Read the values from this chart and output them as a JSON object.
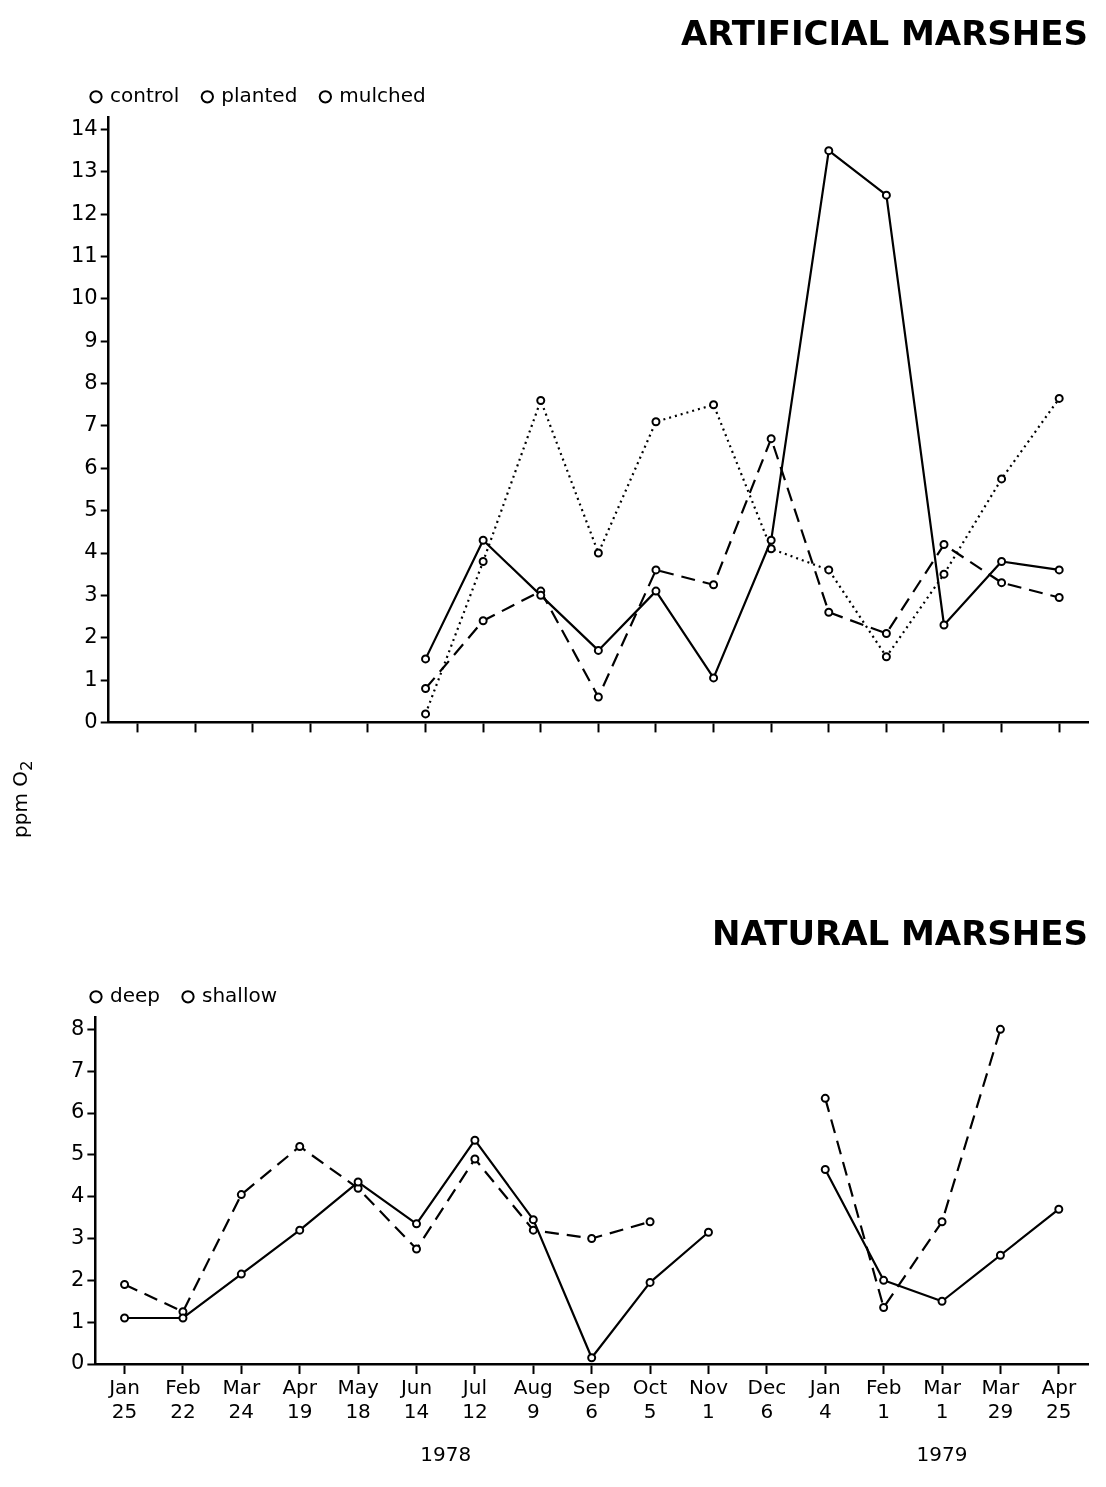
{
  "chart_data": [
    {
      "type": "line",
      "title": "ARTIFICIAL MARSHES",
      "ylabel": "ppm O$_{2}$",
      "categories": [
        null,
        null,
        null,
        null,
        null,
        null,
        null,
        null,
        null,
        null,
        null,
        null,
        null,
        null,
        null,
        null,
        null
      ],
      "series": [
        {
          "name": "control",
          "color": "#000000",
          "line_style": "solid",
          "values": [
            null,
            null,
            null,
            null,
            null,
            1.5,
            4.3,
            3.0,
            1.7,
            3.1,
            1.05,
            4.3,
            13.5,
            12.45,
            2.3,
            3.8,
            3.6
          ]
        },
        {
          "name": "planted",
          "color": "#000000",
          "line_style": "dashed",
          "values": [
            null,
            null,
            null,
            null,
            null,
            0.8,
            2.4,
            3.1,
            0.6,
            3.6,
            3.25,
            6.7,
            2.6,
            2.1,
            4.2,
            3.3,
            2.95
          ]
        },
        {
          "name": "mulched",
          "color": "#000000",
          "line_style": "dotted",
          "values": [
            null,
            null,
            null,
            null,
            null,
            0.2,
            3.8,
            7.6,
            4.0,
            7.1,
            7.5,
            4.1,
            3.6,
            1.55,
            3.5,
            5.75,
            7.65
          ]
        }
      ],
      "ylim": [
        0,
        14.3
      ],
      "yticks": [
        0,
        1,
        2,
        3,
        4,
        5,
        6,
        7,
        8,
        9,
        10,
        11,
        12,
        13,
        14
      ],
      "grid": false,
      "legend": "top left",
      "marker": "circle",
      "tick_labels": "y"
    },
    {
      "type": "line",
      "title": "NATURAL MARSHES",
      "categories": [
        "Jan 25",
        "Feb 22",
        "Mar 24",
        "Apr 19",
        "May 18",
        "Jun 14",
        "Jul 12",
        "Aug 9",
        "Sep 6",
        "Oct 5",
        "Nov 1",
        "Dec 6",
        "Jan 4",
        "Feb 1",
        "Mar 1",
        "Mar 29",
        "Apr 25"
      ],
      "series": [
        {
          "name": "deep",
          "color": "#000000",
          "line_style": "solid",
          "values": [
            1.1,
            1.1,
            2.15,
            3.2,
            4.35,
            3.35,
            5.35,
            3.45,
            0.15,
            1.95,
            3.15,
            null,
            4.65,
            2.0,
            1.5,
            2.6,
            3.7
          ]
        },
        {
          "name": "shallow",
          "color": "#000000",
          "line_style": "dashed",
          "values": [
            1.9,
            1.25,
            4.05,
            5.2,
            4.2,
            2.75,
            4.9,
            3.2,
            3.0,
            3.4,
            null,
            null,
            6.35,
            1.35,
            3.4,
            8.0,
            null
          ]
        }
      ],
      "ylim": [
        0,
        8.3
      ],
      "yticks": [
        0,
        1,
        2,
        3,
        4,
        5,
        6,
        7,
        8
      ],
      "grid": false,
      "legend": "top left",
      "marker": "circle",
      "annotations": [
        "1978",
        "1979"
      ]
    }
  ]
}
